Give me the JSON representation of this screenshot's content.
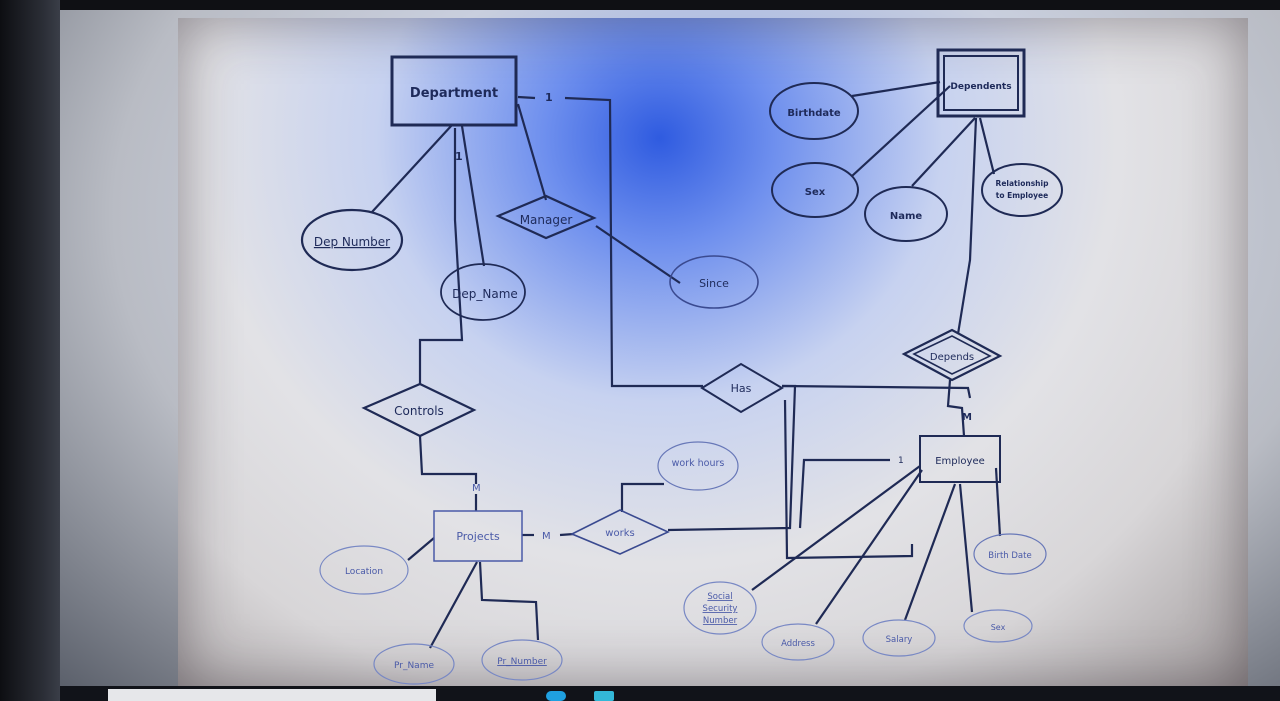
{
  "diagram": {
    "entities": {
      "department": "Department",
      "dependents": "Dependents",
      "projects": "Projects",
      "employee": "Employee"
    },
    "relationships": {
      "manager": "Manager",
      "controls": "Controls",
      "has": "Has",
      "depends": "Depends",
      "works": "works"
    },
    "attributes": {
      "dep_number": "Dep Number",
      "dep_name": "Dep_Name",
      "since": "Since",
      "birthdate": "Birthdate",
      "sex_dependent": "Sex",
      "name_dependent": "Name",
      "relationship_line1": "Relationship",
      "relationship_line2": "to Employee",
      "work_hours": "work hours",
      "location": "Location",
      "pr_name": "Pr_Name",
      "pr_number": "Pr_Number",
      "ssn_line1": "Social",
      "ssn_line2": "Security",
      "ssn_line3": "Number",
      "address": "Address",
      "salary": "Salary",
      "sex_employee": "Sex",
      "birth_date": "Birth Date"
    },
    "cardinalities": {
      "dept_manager_1": "1",
      "dept_controls_1": "1",
      "controls_projects_m": "M",
      "projects_works_m": "M",
      "works_employee_1": "1",
      "depends_employee_m": "M"
    }
  },
  "colors": {
    "line": "#1f2a55",
    "text": "#1e2a5a"
  }
}
